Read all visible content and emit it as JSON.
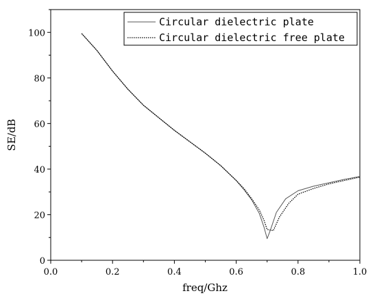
{
  "chart_data": {
    "type": "line",
    "xlabel": "freq/Ghz",
    "ylabel": "SE/dB",
    "xlim": [
      0.0,
      1.0
    ],
    "ylim": [
      0,
      110
    ],
    "xticks": [
      0.0,
      0.2,
      0.4,
      0.6,
      0.8,
      1.0
    ],
    "xtick_labels": [
      "0.0",
      "0.2",
      "0.4",
      "0.6",
      "0.8",
      "1.0"
    ],
    "yticks": [
      0,
      20,
      40,
      60,
      80,
      100
    ],
    "ytick_labels": [
      "0",
      "20",
      "40",
      "60",
      "80",
      "100"
    ],
    "grid": false,
    "legend_position": "top-right",
    "series": [
      {
        "name": "Circular dielectric plate",
        "style": "solid",
        "color": "#555555",
        "x": [
          0.1,
          0.15,
          0.2,
          0.25,
          0.3,
          0.35,
          0.4,
          0.45,
          0.5,
          0.55,
          0.6,
          0.625,
          0.65,
          0.675,
          0.69,
          0.7,
          0.71,
          0.73,
          0.76,
          0.8,
          0.85,
          0.9,
          0.95,
          1.0
        ],
        "y": [
          99.5,
          92,
          83,
          75,
          68,
          62.5,
          57,
          52,
          47,
          41.5,
          35,
          31,
          26.5,
          20.5,
          14.5,
          9.5,
          13,
          21,
          27,
          30.5,
          32.5,
          34,
          35.5,
          36.8
        ]
      },
      {
        "name": "Circular dielectric free plate",
        "style": "dotted",
        "color": "#000000",
        "x": [
          0.1,
          0.15,
          0.2,
          0.25,
          0.3,
          0.35,
          0.4,
          0.45,
          0.5,
          0.55,
          0.6,
          0.625,
          0.65,
          0.675,
          0.69,
          0.7,
          0.72,
          0.74,
          0.77,
          0.8,
          0.85,
          0.9,
          0.95,
          1.0
        ],
        "y": [
          99.5,
          92,
          83,
          75,
          68,
          62.5,
          57,
          52,
          47,
          41.5,
          35,
          31.5,
          27,
          22,
          17.5,
          13.5,
          13,
          19,
          25,
          29,
          31.5,
          33.5,
          35,
          36.5
        ]
      }
    ]
  }
}
